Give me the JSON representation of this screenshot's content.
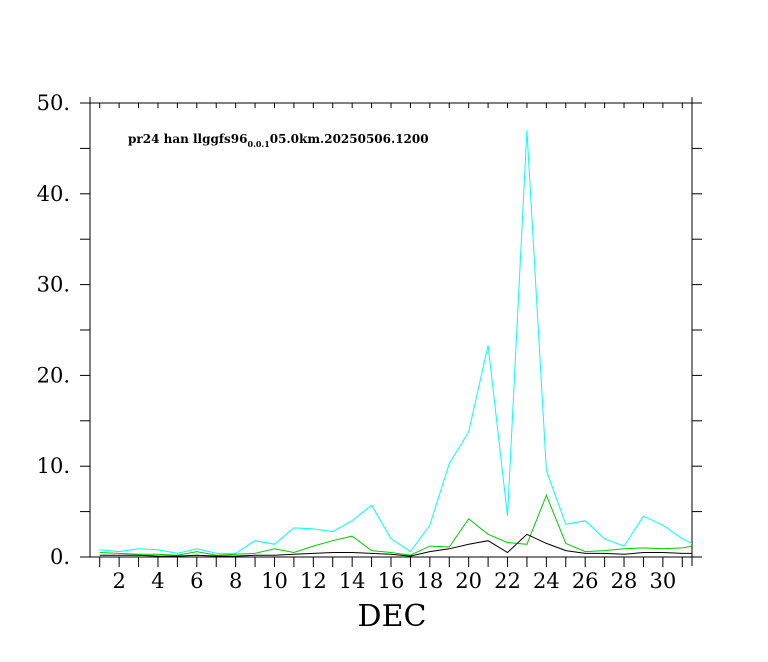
{
  "chart_data": {
    "type": "line",
    "annotation": {
      "prefix": "pr24 han llggfs96",
      "subscript": "0.0.1",
      "suffix": "05.0km.20250506.1200"
    },
    "xlabel": "DEC",
    "ylabel": "",
    "xlim": [
      0.5,
      31.5
    ],
    "ylim": [
      0,
      50
    ],
    "y_ticks": [
      "0.",
      "10.",
      "20.",
      "30.",
      "40.",
      "50."
    ],
    "y_tick_values": [
      0,
      10,
      20,
      30,
      40,
      50
    ],
    "x_ticks": [
      "2",
      "4",
      "6",
      "8",
      "10",
      "12",
      "14",
      "16",
      "18",
      "20",
      "22",
      "24",
      "26",
      "28",
      "30"
    ],
    "x_tick_values": [
      2,
      4,
      6,
      8,
      10,
      12,
      14,
      16,
      18,
      20,
      22,
      24,
      26,
      28,
      30
    ],
    "grid": false,
    "legend": "none",
    "x": [
      1,
      2,
      3,
      4,
      5,
      6,
      7,
      8,
      9,
      10,
      11,
      12,
      13,
      14,
      15,
      16,
      17,
      18,
      19,
      20,
      21,
      22,
      23,
      24,
      25,
      26,
      27,
      28,
      29,
      30,
      31,
      31.5
    ],
    "series": [
      {
        "color": "#00ffff",
        "values": [
          0.8,
          0.6,
          0.9,
          0.8,
          0.4,
          0.9,
          0.4,
          0.4,
          1.8,
          1.4,
          3.2,
          3.1,
          2.8,
          4.0,
          5.7,
          2.0,
          0.6,
          3.5,
          10.3,
          13.8,
          23.3,
          4.5,
          47.0,
          9.5,
          3.6,
          4.0,
          2.0,
          1.2,
          4.5,
          3.5,
          2.0,
          1.5
        ]
      },
      {
        "color": "#00cc00",
        "values": [
          0.5,
          0.4,
          0.3,
          0.3,
          0.2,
          0.6,
          0.2,
          0.3,
          0.4,
          0.9,
          0.5,
          1.2,
          1.8,
          2.3,
          0.7,
          0.5,
          0.2,
          1.2,
          1.1,
          4.2,
          2.5,
          1.6,
          1.4,
          6.8,
          1.5,
          0.6,
          0.7,
          0.9,
          1.0,
          0.9,
          1.0,
          1.2
        ]
      },
      {
        "color": "#000000",
        "values": [
          0.2,
          0.2,
          0.2,
          0.1,
          0.1,
          0.2,
          0.1,
          0.1,
          0.2,
          0.2,
          0.3,
          0.4,
          0.5,
          0.5,
          0.4,
          0.3,
          0.1,
          0.6,
          0.9,
          1.4,
          1.8,
          0.5,
          2.5,
          1.5,
          0.7,
          0.4,
          0.4,
          0.3,
          0.5,
          0.5,
          0.4,
          0.4
        ]
      }
    ]
  }
}
